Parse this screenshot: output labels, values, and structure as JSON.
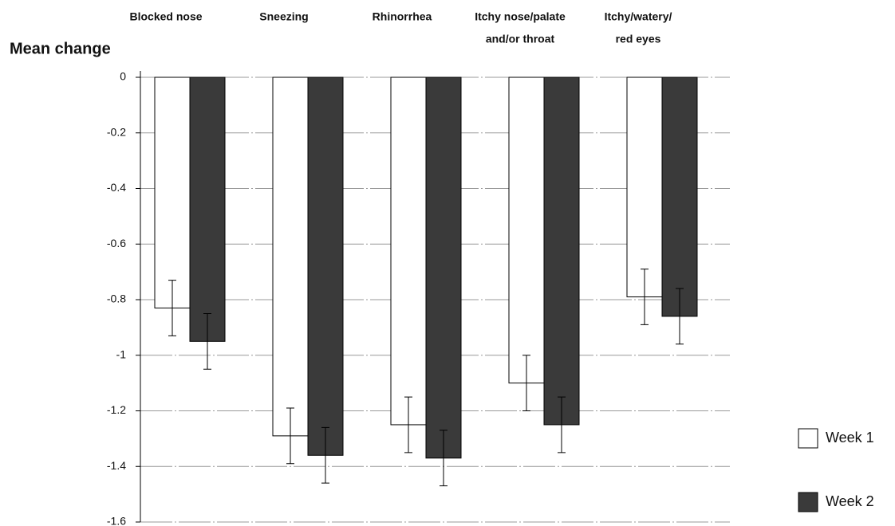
{
  "chart_data": {
    "type": "bar",
    "y_label": "Mean change",
    "categories": [
      [
        "Blocked nose"
      ],
      [
        "Sneezing"
      ],
      [
        "Rhinorrhea"
      ],
      [
        "Itchy nose/palate",
        "and/or throat"
      ],
      [
        "Itchy/watery/",
        "red eyes"
      ]
    ],
    "series": [
      {
        "name": "Week 1",
        "color": "#ffffff",
        "values": [
          -0.83,
          -1.29,
          -1.25,
          -1.1,
          -0.79
        ],
        "errors": [
          0.1,
          0.1,
          0.1,
          0.1,
          0.1
        ]
      },
      {
        "name": "Week 2",
        "color": "#3a3a3a",
        "values": [
          -0.95,
          -1.36,
          -1.37,
          -1.25,
          -0.86
        ],
        "errors": [
          0.1,
          0.1,
          0.1,
          0.1,
          0.1
        ]
      }
    ],
    "ylim": [
      -1.6,
      0
    ],
    "yticks": [
      0,
      -0.2,
      -0.4,
      -0.6,
      -0.8,
      -1,
      -1.2,
      -1.4,
      -1.6
    ],
    "grid": true,
    "legend": "right"
  }
}
